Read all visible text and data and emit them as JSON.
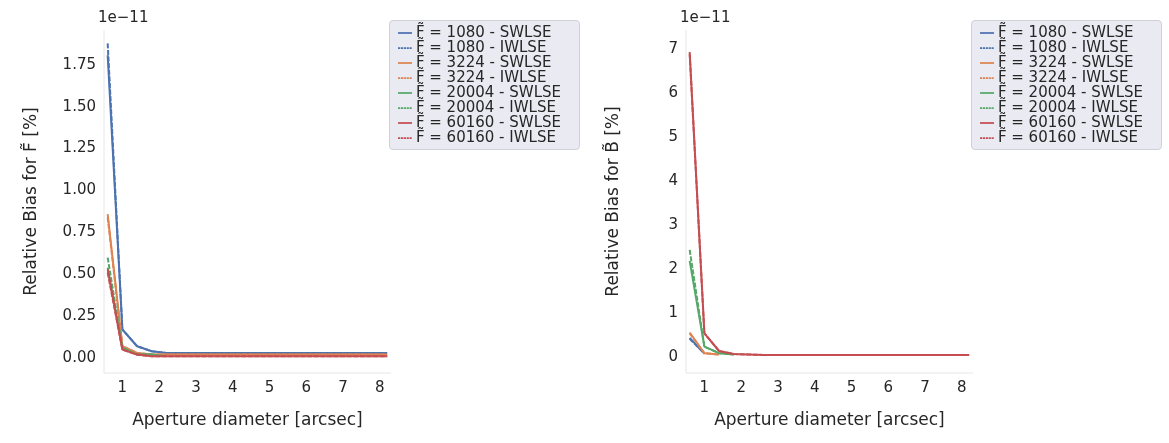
{
  "chart_data": [
    {
      "type": "line",
      "xlabel": "Aperture diameter [arcsec]",
      "ylabel": "Relative Bias for F̃ [%]",
      "annotations": [
        "1e−11"
      ],
      "x": [
        0.6,
        1.0,
        1.4,
        1.8,
        2.2,
        2.6,
        3.0,
        3.4,
        3.8,
        4.2,
        4.6,
        5.0,
        5.4,
        5.8,
        6.2,
        6.6,
        7.0,
        7.4,
        7.8,
        8.2
      ],
      "xlim": [
        0.5,
        8.3
      ],
      "xticks": [
        1,
        2,
        3,
        4,
        5,
        6,
        7,
        8
      ],
      "ylim": [
        -0.1,
        1.95
      ],
      "yticks": [
        {
          "value": 0,
          "label": "0.00"
        },
        {
          "value": 0.25,
          "label": "0.25"
        },
        {
          "value": 0.5,
          "label": "0.50"
        },
        {
          "value": 0.75,
          "label": "0.75"
        },
        {
          "value": 1,
          "label": "1.00"
        },
        {
          "value": 1.25,
          "label": "1.25"
        },
        {
          "value": 1.5,
          "label": "1.50"
        },
        {
          "value": 1.75,
          "label": "1.75"
        }
      ],
      "legend": "top right",
      "series": [
        {
          "name": "F̃ = 1080 - SWLSE",
          "color": "#4c72b0",
          "line_style": "solid",
          "values": [
            1.8,
            0.16,
            0.06,
            0.03,
            0.02,
            0.02,
            0.02,
            0.02,
            0.02,
            0.02,
            0.02,
            0.02,
            0.02,
            0.02,
            0.02,
            0.02,
            0.02,
            0.02,
            0.02,
            0.02
          ]
        },
        {
          "name": "F̃ = 1080 - IWLSE",
          "color": "#4c72b0",
          "line_style": "dashed",
          "values": [
            1.87,
            0.16,
            0.06,
            0.03,
            0.02,
            0.02,
            0.02,
            0.02,
            0.02,
            0.02,
            0.02,
            0.02,
            0.02,
            0.02,
            0.02,
            0.02,
            0.02,
            0.02,
            0.02,
            0.02
          ]
        },
        {
          "name": "F̃ = 3224 - SWLSE",
          "color": "#dd8452",
          "line_style": "solid",
          "values": [
            0.85,
            0.06,
            0.02,
            0.01,
            0.01,
            0.01,
            0.01,
            0.01,
            0.01,
            0.01,
            0.01,
            0.01,
            0.01,
            0.01,
            0.01,
            0.01,
            0.01,
            0.01,
            0.01,
            0.01
          ]
        },
        {
          "name": "F̃ = 3224 - IWLSE",
          "color": "#dd8452",
          "line_style": "dashed",
          "values": [
            0.83,
            0.06,
            0.02,
            0.01,
            0.01,
            0.01,
            0.01,
            0.01,
            0.01,
            0.01,
            0.01,
            0.01,
            0.01,
            0.01,
            0.01,
            0.01,
            0.01,
            0.01,
            0.01,
            0.01
          ]
        },
        {
          "name": "F̃ = 20004 - SWLSE",
          "color": "#55a868",
          "line_style": "solid",
          "values": [
            0.53,
            0.05,
            0.01,
            0.01,
            0.0,
            null,
            null,
            null,
            null,
            null,
            null,
            null,
            null,
            null,
            null,
            null,
            null,
            null,
            null,
            null
          ]
        },
        {
          "name": "F̃ = 20004 - IWLSE",
          "color": "#55a868",
          "line_style": "dashed",
          "values": [
            0.59,
            0.05,
            0.01,
            0.01,
            null,
            null,
            null,
            null,
            null,
            null,
            null,
            null,
            null,
            null,
            null,
            null,
            null,
            null,
            null,
            null
          ]
        },
        {
          "name": "F̃ = 60160 - SWLSE",
          "color": "#c44e52",
          "line_style": "solid",
          "values": [
            0.52,
            0.04,
            0.01,
            0.0,
            0.0,
            0.0,
            0.0,
            0.0,
            0.0,
            0.0,
            0.0,
            0.0,
            0.0,
            0.0,
            0.0,
            0.0,
            0.0,
            0.0,
            0.0,
            0.0
          ]
        },
        {
          "name": "F̃ = 60160 - IWLSE",
          "color": "#c44e52",
          "line_style": "dashed",
          "values": [
            0.5,
            0.04,
            0.01,
            0.0,
            0.0,
            0.0,
            0.0,
            0.0,
            0.0,
            0.0,
            0.0,
            0.0,
            0.0,
            0.0,
            0.0,
            0.0,
            0.0,
            0.0,
            0.0,
            0.0
          ]
        }
      ]
    },
    {
      "type": "line",
      "xlabel": "Aperture diameter [arcsec]",
      "ylabel": "Relative Bias for B̃ [%]",
      "annotations": [
        "1e−11"
      ],
      "x": [
        0.6,
        1.0,
        1.4,
        1.8,
        2.2,
        2.6,
        3.0,
        3.4,
        3.8,
        4.2,
        4.6,
        5.0,
        5.4,
        5.8,
        6.2,
        6.6,
        7.0,
        7.4,
        7.8,
        8.2
      ],
      "xlim": [
        0.5,
        8.3
      ],
      "xticks": [
        1,
        2,
        3,
        4,
        5,
        6,
        7,
        8
      ],
      "ylim": [
        -0.4,
        7.4
      ],
      "yticks": [
        0,
        1,
        2,
        3,
        4,
        5,
        6,
        7
      ],
      "legend": "top right",
      "series": [
        {
          "name": "F̃ = 1080 - SWLSE",
          "color": "#4c72b0",
          "line_style": "solid",
          "values": [
            0.4,
            0.04,
            null,
            null,
            null,
            null,
            null,
            null,
            null,
            null,
            null,
            null,
            null,
            null,
            null,
            null,
            null,
            null,
            null,
            null
          ]
        },
        {
          "name": "F̃ = 1080 - IWLSE",
          "color": "#4c72b0",
          "line_style": "dashed",
          "values": [
            0.38,
            0.04,
            null,
            null,
            null,
            null,
            null,
            null,
            null,
            null,
            null,
            null,
            null,
            null,
            null,
            null,
            null,
            null,
            null,
            null
          ]
        },
        {
          "name": "F̃ = 3224 - SWLSE",
          "color": "#dd8452",
          "line_style": "solid",
          "values": [
            0.52,
            0.05,
            0.02,
            null,
            null,
            null,
            null,
            null,
            null,
            null,
            null,
            null,
            null,
            null,
            null,
            null,
            null,
            null,
            null,
            null
          ]
        },
        {
          "name": "F̃ = 3224 - IWLSE",
          "color": "#dd8452",
          "line_style": "dashed",
          "values": [
            0.5,
            0.05,
            0.02,
            null,
            null,
            null,
            null,
            null,
            null,
            null,
            null,
            null,
            null,
            null,
            null,
            null,
            null,
            null,
            null,
            null
          ]
        },
        {
          "name": "F̃ = 20004 - SWLSE",
          "color": "#55a868",
          "line_style": "solid",
          "values": [
            2.15,
            0.2,
            0.05,
            0.02,
            null,
            null,
            null,
            null,
            null,
            null,
            null,
            null,
            null,
            null,
            null,
            null,
            null,
            null,
            null,
            null
          ]
        },
        {
          "name": "F̃ = 20004 - IWLSE",
          "color": "#55a868",
          "line_style": "dashed",
          "values": [
            2.4,
            0.2,
            0.05,
            0.02,
            null,
            null,
            null,
            null,
            null,
            null,
            null,
            null,
            null,
            null,
            null,
            null,
            null,
            null,
            null,
            null
          ]
        },
        {
          "name": "F̃ = 60160 - SWLSE",
          "color": "#c44e52",
          "line_style": "solid",
          "values": [
            6.9,
            0.5,
            0.1,
            0.03,
            0.02,
            0.01,
            0.01,
            0.01,
            0.01,
            0.01,
            0.01,
            0.01,
            0.01,
            0.01,
            0.01,
            0.01,
            0.01,
            0.01,
            0.01,
            0.01
          ]
        },
        {
          "name": "F̃ = 60160 - IWLSE",
          "color": "#c44e52",
          "line_style": "dashed",
          "values": [
            6.85,
            0.5,
            0.1,
            0.03,
            0.02,
            0.01,
            0.01,
            0.01,
            0.01,
            0.01,
            0.01,
            0.01,
            0.01,
            0.01,
            0.01,
            0.01,
            0.01,
            0.01,
            0.01,
            0.01
          ]
        }
      ]
    }
  ]
}
